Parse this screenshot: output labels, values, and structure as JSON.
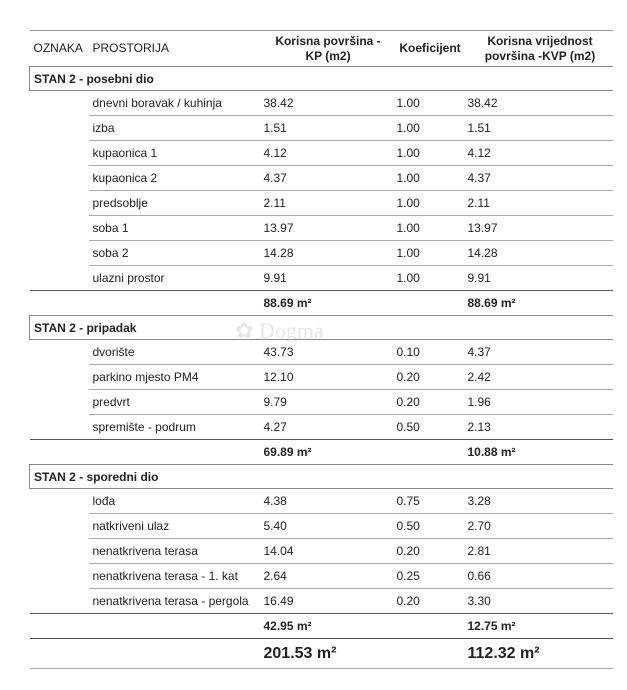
{
  "header": {
    "oznaka": "OZNAKA",
    "prostorija": "PROSTORIJA",
    "kp_line1": "Korisna površina -",
    "kp_line2": "KP (m2)",
    "koef": "Koeficijent",
    "kvp_line1": "Korisna vrijednost",
    "kvp_line2": "površina -KVP (m2)"
  },
  "watermark": "Dogma",
  "sections": [
    {
      "title": "STAN 2 - posebni dio",
      "rows": [
        {
          "name": "dnevni boravak / kuhinja",
          "kp": "38.42",
          "k": "1.00",
          "kvp": "38.42"
        },
        {
          "name": "izba",
          "kp": "1.51",
          "k": "1.00",
          "kvp": "1.51"
        },
        {
          "name": "kupaonica 1",
          "kp": "4.12",
          "k": "1.00",
          "kvp": "4.12"
        },
        {
          "name": "kupaonica 2",
          "kp": "4.37",
          "k": "1.00",
          "kvp": "4.37"
        },
        {
          "name": "predsoblje",
          "kp": "2.11",
          "k": "1.00",
          "kvp": "2.11"
        },
        {
          "name": "soba 1",
          "kp": "13.97",
          "k": "1.00",
          "kvp": "13.97"
        },
        {
          "name": "soba 2",
          "kp": "14.28",
          "k": "1.00",
          "kvp": "14.28"
        },
        {
          "name": "ulazni prostor",
          "kp": "9.91",
          "k": "1.00",
          "kvp": "9.91"
        }
      ],
      "sum_kp": "88.69 m²",
      "sum_kvp": "88.69 m²"
    },
    {
      "title": "STAN 2 - pripadak",
      "rows": [
        {
          "name": "dvorište",
          "kp": "43.73",
          "k": "0.10",
          "kvp": "4.37"
        },
        {
          "name": "parkino mjesto PM4",
          "kp": "12.10",
          "k": "0.20",
          "kvp": "2.42"
        },
        {
          "name": "predvrt",
          "kp": "9.79",
          "k": "0.20",
          "kvp": "1.96"
        },
        {
          "name": "spremište - podrum",
          "kp": "4.27",
          "k": "0.50",
          "kvp": "2.13"
        }
      ],
      "sum_kp": "69.89 m²",
      "sum_kvp": "10.88 m²"
    },
    {
      "title": "STAN 2 - sporedni dio",
      "rows": [
        {
          "name": "lođa",
          "kp": "4.38",
          "k": "0.75",
          "kvp": "3.28"
        },
        {
          "name": "natkriveni ulaz",
          "kp": "5.40",
          "k": "0.50",
          "kvp": "2.70"
        },
        {
          "name": "nenatkrivena terasa",
          "kp": "14.04",
          "k": "0.20",
          "kvp": "2.81"
        },
        {
          "name": "nenatkrivena terasa - 1. kat",
          "kp": "2.64",
          "k": "0.25",
          "kvp": "0.66"
        },
        {
          "name": "nenatkrivena terasa - pergola",
          "kp": "16.49",
          "k": "0.20",
          "kvp": "3.30"
        }
      ],
      "sum_kp": "42.95 m²",
      "sum_kvp": "12.75 m²"
    }
  ],
  "total": {
    "kp": "201.53 m²",
    "kvp": "112.32 m²"
  }
}
